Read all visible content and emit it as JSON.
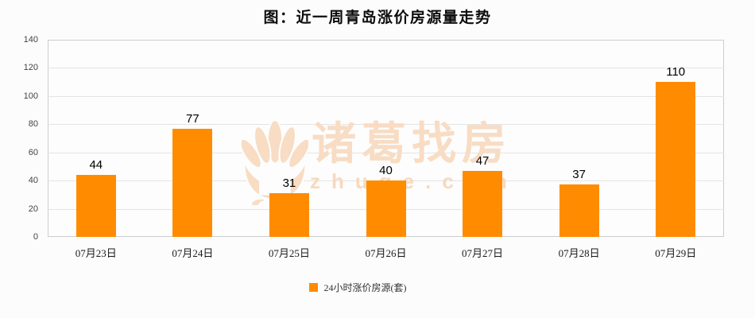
{
  "chart_data": {
    "type": "bar",
    "title": "图：近一周青岛涨价房源量走势",
    "categories": [
      "07月23日",
      "07月24日",
      "07月25日",
      "07月26日",
      "07月27日",
      "07月28日",
      "07月29日"
    ],
    "series": [
      {
        "name": "24小时涨价房源(套)",
        "values": [
          44,
          77,
          31,
          40,
          47,
          37,
          110
        ],
        "color": "#FF8C00"
      }
    ],
    "xlabel": "",
    "ylabel": "",
    "ylim": [
      0,
      140
    ],
    "ytick_step": 20,
    "grid": true,
    "value_labels": true,
    "legend_position": "bottom"
  },
  "watermark": {
    "brand": "诸葛找房",
    "domain": "zhuge.com",
    "icon": "zhuge-lotus-house-logo",
    "color": "#f8dcc3",
    "domain_color": "#f7d9bd"
  },
  "colors": {
    "bar": "#FF8C00",
    "plot_background": "#fdfdfd",
    "plot_border": "#cccccc",
    "grid_line": "#e4e4e4",
    "title_text": "#0d0d0d",
    "axis_text": "#444444",
    "category_text": "#1a1a1a",
    "value_text": "#000000"
  }
}
